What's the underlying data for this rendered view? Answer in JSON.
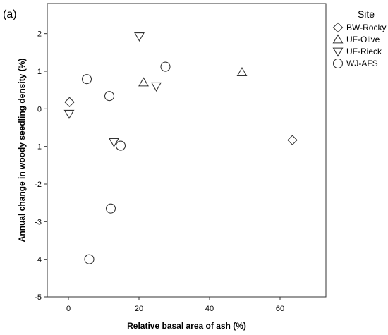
{
  "panel_label": "(a)",
  "chart_data": {
    "type": "scatter",
    "xlabel": "Relative basal area of ash (%)",
    "ylabel": "Annual change in woody seedling density (%)",
    "xlim": [
      -6,
      73
    ],
    "ylim": [
      -5,
      2.8
    ],
    "xticks": [
      0,
      20,
      40,
      60
    ],
    "yticks": [
      -5,
      -4,
      -3,
      -2,
      -1,
      0,
      1,
      2
    ],
    "grid": false,
    "legend": {
      "title": "Site",
      "position": "right"
    },
    "series": [
      {
        "name": "BW-Rocky",
        "marker": "diamond",
        "points": [
          [
            0.3,
            0.18
          ],
          [
            63.5,
            -0.83
          ]
        ]
      },
      {
        "name": "UF-Olive",
        "marker": "triangle-up",
        "points": [
          [
            21.3,
            0.7
          ],
          [
            49.2,
            0.97
          ]
        ]
      },
      {
        "name": "UF-Rieck",
        "marker": "triangle-down",
        "points": [
          [
            0.2,
            -0.13
          ],
          [
            12.9,
            -0.88
          ],
          [
            20.1,
            1.93
          ],
          [
            24.9,
            0.6
          ]
        ]
      },
      {
        "name": "WJ-AFS",
        "marker": "circle",
        "points": [
          [
            5.2,
            0.79
          ],
          [
            5.9,
            -4.0
          ],
          [
            11.6,
            0.34
          ],
          [
            12.0,
            -2.65
          ],
          [
            14.8,
            -0.98
          ],
          [
            27.5,
            1.12
          ]
        ]
      }
    ]
  }
}
